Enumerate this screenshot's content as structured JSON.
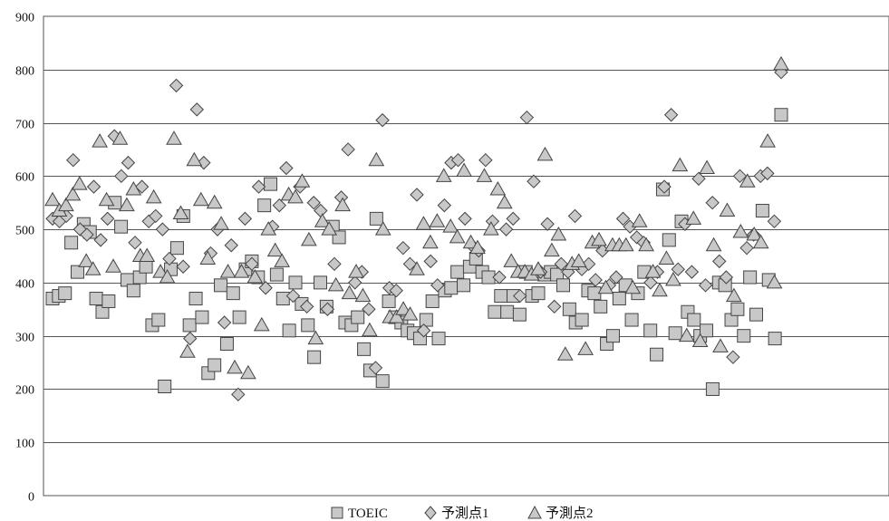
{
  "colors": {
    "plot_border": "#555555",
    "grid": "#555555",
    "marker_fill": "#c8c8c8",
    "marker_stroke": "#444444"
  },
  "chart_data": {
    "type": "scatter",
    "title": "",
    "xlabel": "",
    "ylabel": "",
    "ylim": [
      0,
      900
    ],
    "yticks": [
      0,
      100,
      200,
      300,
      400,
      500,
      600,
      700,
      800,
      900
    ],
    "grid": true,
    "legend_position": "bottom-center",
    "series": [
      {
        "name": "TOEIC",
        "marker": "square",
        "values": [
          370,
          375,
          380,
          475,
          420,
          510,
          495,
          370,
          345,
          365,
          550,
          505,
          405,
          385,
          410,
          430,
          320,
          330,
          205,
          425,
          465,
          525,
          320,
          370,
          335,
          230,
          245,
          395,
          285,
          380,
          335,
          425,
          440,
          410,
          545,
          585,
          415,
          370,
          310,
          400,
          360,
          320,
          260,
          400,
          355,
          505,
          485,
          325,
          320,
          335,
          275,
          235,
          520,
          215,
          365,
          335,
          325,
          310,
          305,
          295,
          330,
          365,
          295,
          385,
          390,
          420,
          395,
          430,
          445,
          420,
          410,
          345,
          375,
          345,
          375,
          340,
          420,
          375,
          380,
          415,
          420,
          415,
          395,
          350,
          325,
          330,
          385,
          380,
          355,
          285,
          300,
          370,
          395,
          330,
          380,
          420,
          310,
          265,
          575,
          480,
          305,
          515,
          345,
          330,
          300,
          310,
          200,
          400,
          395,
          330,
          350,
          300,
          410,
          340,
          535,
          405,
          295,
          715
        ]
      },
      {
        "name": "予測点1",
        "marker": "diamond",
        "values": [
          520,
          515,
          525,
          630,
          500,
          490,
          580,
          480,
          520,
          675,
          600,
          625,
          475,
          580,
          515,
          525,
          500,
          445,
          770,
          430,
          295,
          725,
          625,
          455,
          500,
          325,
          470,
          190,
          520,
          435,
          580,
          390,
          505,
          545,
          615,
          375,
          580,
          355,
          550,
          535,
          350,
          435,
          560,
          650,
          400,
          420,
          350,
          240,
          705,
          390,
          385,
          465,
          435,
          565,
          310,
          440,
          395,
          545,
          625,
          630,
          520,
          470,
          460,
          630,
          515,
          410,
          500,
          520,
          375,
          710,
          590,
          420,
          510,
          355,
          435,
          420,
          525,
          425,
          435,
          405,
          460,
          395,
          410,
          520,
          505,
          485,
          475,
          400,
          420,
          580,
          715,
          425,
          510,
          420,
          595,
          395,
          550,
          440,
          410,
          260,
          600,
          465,
          490,
          600,
          605,
          515,
          795
        ]
      },
      {
        "name": "予測点2",
        "marker": "triangle",
        "values": [
          555,
          535,
          545,
          565,
          585,
          440,
          425,
          665,
          555,
          430,
          670,
          545,
          575,
          450,
          450,
          560,
          420,
          410,
          670,
          530,
          270,
          630,
          555,
          445,
          550,
          510,
          420,
          240,
          420,
          230,
          410,
          320,
          500,
          460,
          440,
          565,
          560,
          590,
          480,
          295,
          515,
          500,
          395,
          545,
          380,
          420,
          375,
          310,
          630,
          500,
          335,
          335,
          350,
          340,
          425,
          510,
          475,
          515,
          600,
          505,
          485,
          610,
          475,
          465,
          600,
          500,
          575,
          550,
          440,
          420,
          420,
          415,
          425,
          640,
          460,
          490,
          265,
          435,
          440,
          275,
          475,
          480,
          390,
          470,
          470,
          470,
          390,
          515,
          470,
          420,
          385,
          445,
          405,
          620,
          300,
          520,
          290,
          615,
          470,
          280,
          535,
          375,
          495,
          590,
          490,
          475,
          665,
          400,
          810
        ]
      }
    ]
  },
  "legend": {
    "items": [
      {
        "label": "TOEIC",
        "marker": "square"
      },
      {
        "label": "予測点1",
        "marker": "diamond"
      },
      {
        "label": "予測点2",
        "marker": "triangle"
      }
    ]
  }
}
